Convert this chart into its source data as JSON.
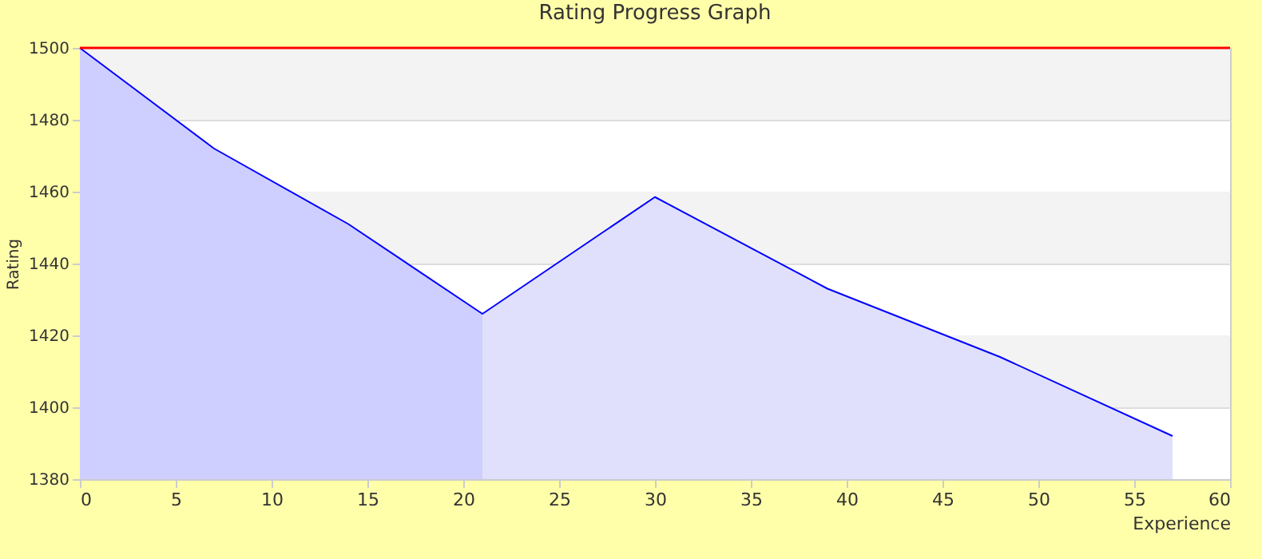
{
  "chart_data": {
    "type": "area",
    "title": "Rating Progress Graph",
    "xlabel": "Experience",
    "ylabel": "Rating",
    "series": [
      {
        "color": "#ceceff",
        "x": [
          0,
          7,
          14,
          21
        ],
        "values": [
          1500,
          1472,
          1451,
          1426
        ]
      },
      {
        "color": "#e0e0fc",
        "x": [
          21,
          30,
          39,
          48,
          57
        ],
        "values": [
          1426,
          1458.5,
          1433,
          1414,
          1392
        ]
      },
      {
        "type": "line",
        "color": "#0000ff",
        "x": [
          0,
          7,
          14,
          21,
          30,
          39,
          48,
          57
        ],
        "values": [
          1500,
          1472,
          1451,
          1426,
          1458.5,
          1433,
          1414,
          1392
        ]
      }
    ],
    "xlim": [
      0,
      60
    ],
    "xticks": [
      0,
      5,
      10,
      15,
      20,
      25,
      30,
      35,
      40,
      45,
      50,
      55,
      60
    ],
    "ylim": [
      1380,
      1500
    ],
    "yticks": [
      1380,
      1400,
      1420,
      1440,
      1460,
      1480,
      1500
    ],
    "ref_lines": [
      {
        "axis": "y",
        "value": 1500,
        "color": "#ff0000"
      }
    ],
    "bands": [
      {
        "axis": "y",
        "from": 1480,
        "to": 1500,
        "color": "#f3f3f3"
      },
      {
        "axis": "y",
        "from": 1440,
        "to": 1460,
        "color": "#f3f3f3"
      },
      {
        "axis": "y",
        "from": 1400,
        "to": 1420,
        "color": "#f3f3f3"
      }
    ],
    "grid": "y"
  }
}
